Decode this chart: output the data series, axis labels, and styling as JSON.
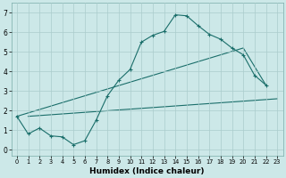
{
  "xlabel": "Humidex (Indice chaleur)",
  "bg_color": "#cce8e8",
  "grid_color": "#aacccc",
  "line_color": "#1a6e6a",
  "xlim": [
    -0.5,
    23.5
  ],
  "ylim": [
    -0.3,
    7.5
  ],
  "xticks": [
    0,
    1,
    2,
    3,
    4,
    5,
    6,
    7,
    8,
    9,
    10,
    11,
    12,
    13,
    14,
    15,
    16,
    17,
    18,
    19,
    20,
    21,
    22,
    23
  ],
  "yticks": [
    0,
    1,
    2,
    3,
    4,
    5,
    6,
    7
  ],
  "line1_x": [
    0,
    1,
    2,
    3,
    4,
    5,
    6,
    7,
    8,
    9,
    10,
    11,
    12,
    13,
    14,
    15,
    16,
    17,
    18,
    19,
    20,
    21,
    22
  ],
  "line1_y": [
    1.7,
    0.8,
    1.1,
    0.7,
    0.65,
    0.25,
    0.45,
    1.5,
    2.75,
    3.55,
    4.1,
    5.5,
    5.85,
    6.05,
    6.9,
    6.85,
    6.35,
    5.9,
    5.65,
    5.2,
    4.85,
    3.8,
    3.3
  ],
  "line2_x": [
    1,
    23
  ],
  "line2_y": [
    1.7,
    2.6
  ],
  "line3_x": [
    0,
    20,
    22
  ],
  "line3_y": [
    1.7,
    5.2,
    3.3
  ]
}
